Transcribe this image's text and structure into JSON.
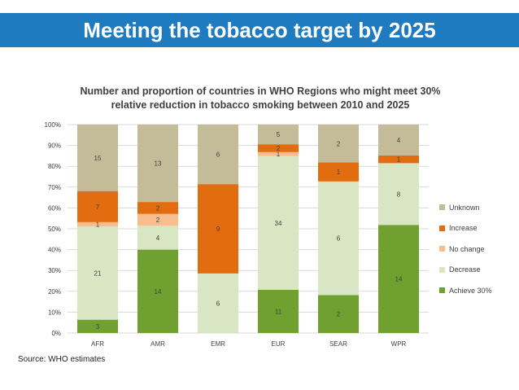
{
  "banner": {
    "title": "Meeting the tobacco target by 2025"
  },
  "source": "Source: WHO estimates",
  "colors": {
    "banner": "#1f7bbf",
    "achieve": "#6fa030",
    "decrease": "#d9e6c3",
    "no_change": "#f7bd8f",
    "increase": "#e26c10",
    "unknown": "#c4bc99"
  },
  "chart_data": {
    "type": "bar",
    "stacked": true,
    "normalized_percent": true,
    "title": "Number and proportion of countries in WHO Regions who might meet 30% relative reduction in tobacco smoking between 2010 and 2025",
    "categories": [
      "AFR",
      "AMR",
      "EMR",
      "EUR",
      "SEAR",
      "WPR"
    ],
    "y_ticks": [
      "0%",
      "10%",
      "20%",
      "30%",
      "40%",
      "50%",
      "60%",
      "70%",
      "80%",
      "90%",
      "100%"
    ],
    "ylim": [
      0,
      100
    ],
    "legend_position": "right",
    "series": [
      {
        "name": "Achieve 30%",
        "color_key": "achieve",
        "values": [
          3,
          14,
          0,
          11,
          2,
          14
        ]
      },
      {
        "name": "Decrease",
        "color_key": "decrease",
        "values": [
          21,
          4,
          6,
          34,
          6,
          8
        ]
      },
      {
        "name": "No change",
        "color_key": "no_change",
        "values": [
          1,
          2,
          0,
          1,
          0,
          0
        ]
      },
      {
        "name": "Increase",
        "color_key": "increase",
        "values": [
          7,
          2,
          9,
          2,
          1,
          1
        ]
      },
      {
        "name": "Unknown",
        "color_key": "unknown",
        "values": [
          15,
          13,
          6,
          5,
          2,
          4
        ]
      }
    ]
  }
}
